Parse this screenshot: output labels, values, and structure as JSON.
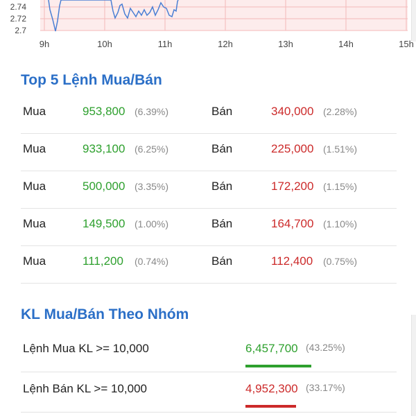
{
  "chart_data": {
    "type": "line",
    "y_tick_labels": [
      "2.74",
      "2.72",
      "2.7"
    ],
    "x_tick_labels": [
      "9h",
      "10h",
      "11h",
      "12h",
      "13h",
      "14h",
      "15h"
    ],
    "colors": {
      "line": "#4a7fd4",
      "grid": "#f4b9b9",
      "band": "#fdecec"
    }
  },
  "top5": {
    "title": "Top 5 Lệnh Mua/Bán",
    "buy_label": "Mua",
    "sell_label": "Bán",
    "rows": [
      {
        "buy_volume": "953,800",
        "buy_pct": "(6.39%)",
        "sell_volume": "340,000",
        "sell_pct": "(2.28%)"
      },
      {
        "buy_volume": "933,100",
        "buy_pct": "(6.25%)",
        "sell_volume": "225,000",
        "sell_pct": "(1.51%)"
      },
      {
        "buy_volume": "500,000",
        "buy_pct": "(3.35%)",
        "sell_volume": "172,200",
        "sell_pct": "(1.15%)"
      },
      {
        "buy_volume": "149,500",
        "buy_pct": "(1.00%)",
        "sell_volume": "164,700",
        "sell_pct": "(1.10%)"
      },
      {
        "buy_volume": "111,200",
        "buy_pct": "(0.74%)",
        "sell_volume": "112,400",
        "sell_pct": "(0.75%)"
      }
    ]
  },
  "group": {
    "title": "KL Mua/Bán Theo Nhóm",
    "rows": [
      {
        "label": "Lệnh Mua KL >= 10,000",
        "volume": "6,457,700",
        "pct": "(43.25%)",
        "share": 0.4325,
        "color": "#2ea02e"
      },
      {
        "label": "Lệnh Bán KL >= 10,000",
        "volume": "4,952,300",
        "pct": "(33.17%)",
        "share": 0.3317,
        "color": "#cc2a2a"
      }
    ]
  }
}
